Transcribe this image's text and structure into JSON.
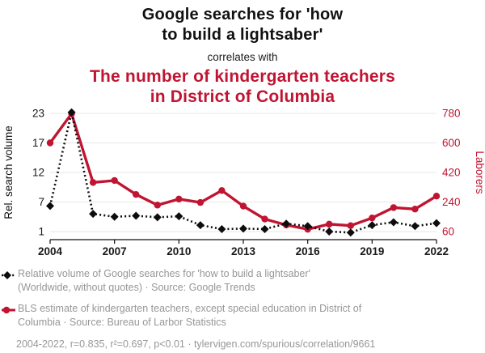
{
  "header": {
    "title": "Google searches for 'how\nto build a lightsaber'",
    "connector": "correlates with",
    "subtitle": "The number of kindergarten teachers\nin District of Columbia"
  },
  "colors": {
    "accent_red": "#c01532",
    "series_black": "#0d0d0d",
    "gridline": "#e7e7e7",
    "axis_text": "#1a1a1a",
    "legend_gray": "#979797"
  },
  "chart_data": {
    "type": "line",
    "x": [
      2004,
      2005,
      2006,
      2007,
      2008,
      2009,
      2010,
      2011,
      2012,
      2013,
      2014,
      2015,
      2016,
      2017,
      2018,
      2019,
      2020,
      2021,
      2022
    ],
    "x_ticks": [
      2004,
      2007,
      2010,
      2013,
      2016,
      2019,
      2022
    ],
    "series": [
      {
        "name": "Relative volume of Google searches for 'how to build a lightsaber'",
        "axis": "left",
        "style": "dashed",
        "marker": "diamond",
        "color": "#0d0d0d",
        "values": [
          6.2,
          23.2,
          4.6,
          4.0,
          4.2,
          3.9,
          4.1,
          2.3,
          1.5,
          1.6,
          1.5,
          2.6,
          2.1,
          1.0,
          0.8,
          2.3,
          2.9,
          2.1,
          2.7
        ]
      },
      {
        "name": "BLS estimate of kindergarten teachers in District of Columbia",
        "axis": "right",
        "style": "solid",
        "marker": "circle",
        "color": "#c01532",
        "values": [
          600,
          778,
          359,
          371,
          286,
          221,
          258,
          237,
          310,
          215,
          136,
          100,
          74,
          105,
          96,
          143,
          206,
          197,
          276
        ]
      }
    ],
    "left_axis": {
      "label": "Rel. search volume",
      "ticks": [
        1,
        7,
        12,
        17,
        23
      ]
    },
    "right_axis": {
      "label": "Laborers",
      "ticks": [
        60,
        240,
        420,
        600,
        780
      ]
    },
    "grid": true,
    "legend_position": "bottom"
  },
  "legend": [
    {
      "text": "Relative volume of Google searches for 'how to build a lightsaber'\n(Worldwide, without quotes) · Source: Google Trends"
    },
    {
      "text": "BLS estimate of kindergarten teachers, except special education in District of\nColumbia · Source: Bureau of Larbor Statistics"
    }
  ],
  "footer": {
    "text": "2004-2022, r=0.835, r²=0.697, p<0.01 · tylervigen.com/spurious/correlation/9661"
  }
}
